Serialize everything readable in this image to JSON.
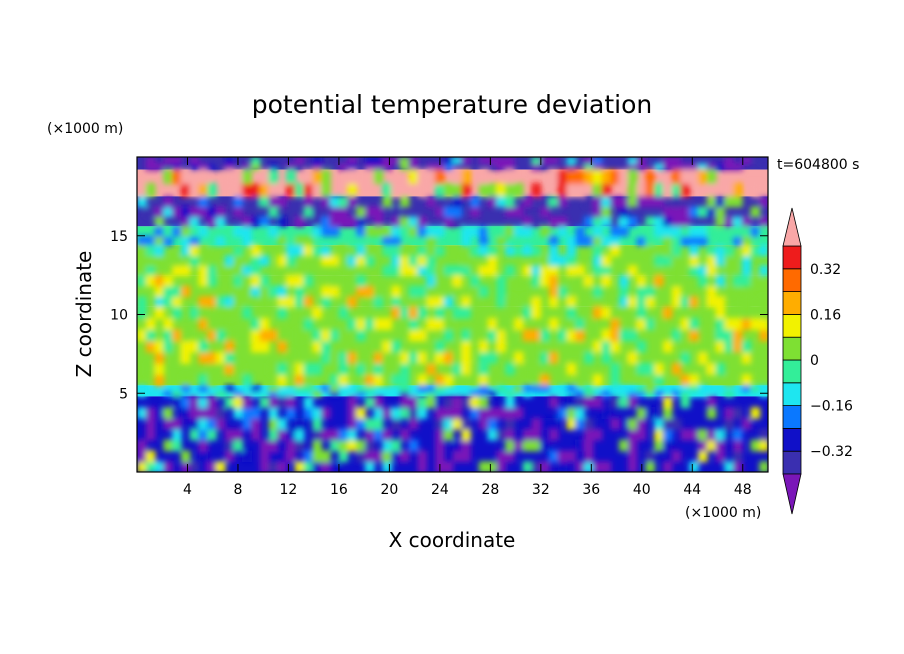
{
  "chart_data": {
    "type": "heatmap",
    "title": "potential temperature deviation",
    "xlabel": "X coordinate",
    "ylabel": "Z coordinate",
    "x_unit": "(×1000 m)",
    "y_unit": "(×1000 m)",
    "time_label": "t=604800 s",
    "xlim": [
      0,
      50
    ],
    "ylim": [
      0,
      20
    ],
    "x_ticks": [
      4,
      8,
      12,
      16,
      20,
      24,
      28,
      32,
      36,
      40,
      44,
      48
    ],
    "y_ticks": [
      5,
      10,
      15
    ],
    "colorbar": {
      "levels": [
        -0.4,
        -0.32,
        -0.24,
        -0.16,
        -0.08,
        0,
        0.08,
        0.16,
        0.24,
        0.32,
        0.4
      ],
      "labels": [
        0.32,
        0.16,
        0,
        -0.16,
        -0.32
      ],
      "colors": [
        "#7a16b8",
        "#3a2fb0",
        "#1010c8",
        "#0a78ff",
        "#1ee6f0",
        "#33ee99",
        "#7ee033",
        "#f2f200",
        "#ffad00",
        "#ff6a00",
        "#ee1c1c",
        "#f9a7a7"
      ]
    },
    "layers": [
      {
        "z": [
          19.2,
          20
        ],
        "level": -0.4
      },
      {
        "z": [
          17.5,
          19.2
        ],
        "level": 0.4
      },
      {
        "z": [
          15.6,
          17.5
        ],
        "level": -0.4
      },
      {
        "z": [
          14.4,
          15.6
        ],
        "level": -0.08
      },
      {
        "z": [
          12.5,
          14.4
        ],
        "level": 0
      },
      {
        "z": [
          10.5,
          12.5
        ],
        "level": 0.04
      },
      {
        "z": [
          5.5,
          10.5
        ],
        "level": 0.06
      },
      {
        "z": [
          4.8,
          5.5
        ],
        "level": -0.12
      },
      {
        "z": [
          0,
          4.8
        ],
        "level": -0.3
      }
    ]
  }
}
